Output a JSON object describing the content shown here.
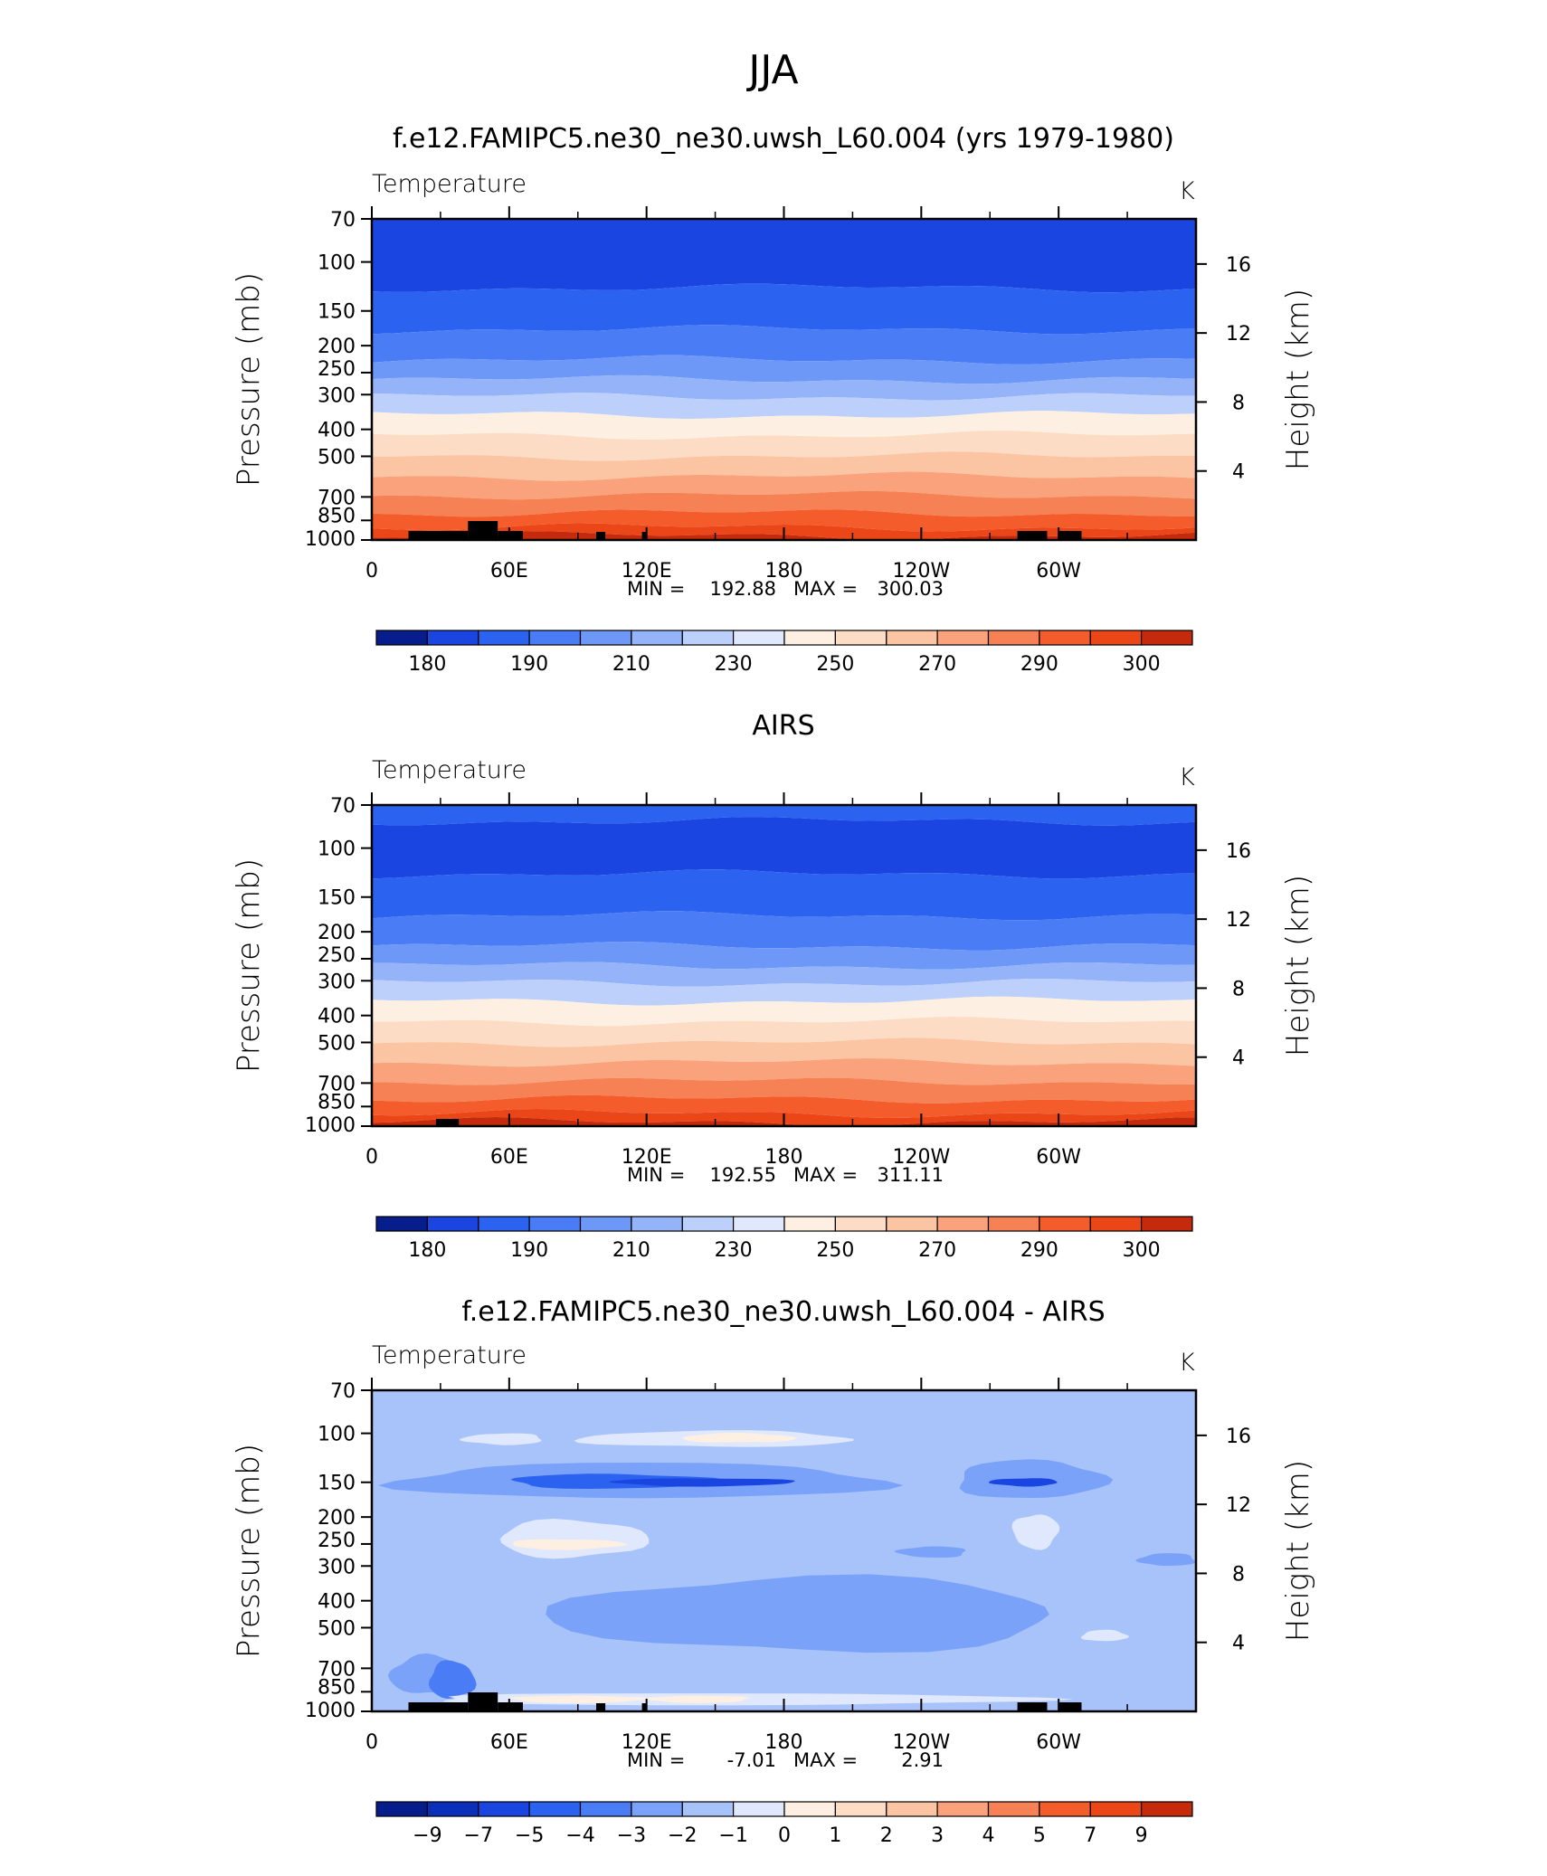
{
  "figure": {
    "title": "JJA"
  },
  "colors": {
    "temperature_levels": [
      "#081d8c",
      "#0b2fb8",
      "#1a45e0",
      "#2c62f0",
      "#4a7cf5",
      "#6e98f7",
      "#94b3f8",
      "#bcd0fb",
      "#dfe8fc",
      "#fdf0e3",
      "#fcdcc4",
      "#fbc4a3",
      "#f9a27b",
      "#f68154",
      "#f45c2c",
      "#ea4617",
      "#c52a0c",
      "#8a1408"
    ],
    "difference_levels": [
      "#081d8c",
      "#0b2fb8",
      "#1a45e0",
      "#2c62f0",
      "#4a7cf5",
      "#7aa2f8",
      "#a8c3fa",
      "#dfe8fc",
      "#fdf0e3",
      "#fcdcc4",
      "#fbc4a3",
      "#f9a27b",
      "#f68154",
      "#f45c2c",
      "#ea4617",
      "#c52a0c",
      "#8a1408"
    ],
    "terrain": "#000000"
  },
  "panels": [
    {
      "title": "f.e12.FAMIPC5.ne30_ne30.uwsh_L60.004 (yrs 1979-1980)",
      "variable_label": "Temperature",
      "units_label": "K",
      "stats": {
        "min_label": "MIN =",
        "min_value": "192.88",
        "max_label": "MAX =",
        "max_value": "300.03"
      },
      "colorbar_labels": [
        "180",
        "190",
        "210",
        "230",
        "250",
        "270",
        "290",
        "300"
      ]
    },
    {
      "title": "AIRS",
      "variable_label": "Temperature",
      "units_label": "K",
      "stats": {
        "min_label": "MIN =",
        "min_value": "192.55",
        "max_label": "MAX =",
        "max_value": "311.11"
      },
      "colorbar_labels": [
        "180",
        "190",
        "210",
        "230",
        "250",
        "270",
        "290",
        "300"
      ]
    },
    {
      "title": "f.e12.FAMIPC5.ne30_ne30.uwsh_L60.004 - AIRS",
      "variable_label": "Temperature",
      "units_label": "K",
      "stats": {
        "min_label": "MIN =",
        "min_value": "-7.01",
        "max_label": "MAX =",
        "max_value": "2.91"
      },
      "colorbar_labels": [
        "-9",
        "-7",
        "-5",
        "-4",
        "-3",
        "-2",
        "-1",
        "0",
        "1",
        "2",
        "3",
        "4",
        "5",
        "7",
        "9"
      ]
    }
  ],
  "chart_data": [
    {
      "type": "heatmap",
      "title": "f.e12.FAMIPC5.ne30_ne30.uwsh_L60.004 (yrs 1979-1980)",
      "xlabel": "",
      "ylabel": "Pressure (mb)",
      "ylabel_right": "Height (km)",
      "x_ticks": [
        "0",
        "60E",
        "120E",
        "180",
        "120W",
        "60W"
      ],
      "x_tick_lon": [
        0,
        60,
        120,
        180,
        240,
        300
      ],
      "xlim": [
        0,
        360
      ],
      "y_ticks": [
        70,
        100,
        150,
        200,
        250,
        300,
        400,
        500,
        700,
        850,
        1000
      ],
      "ylim": [
        1000,
        70
      ],
      "y_scale": "log",
      "right_ticks_km": [
        4,
        8,
        12,
        16
      ],
      "contour_levels": [
        175,
        180,
        185,
        190,
        200,
        210,
        220,
        230,
        240,
        250,
        260,
        270,
        280,
        285,
        290,
        295,
        300
      ],
      "colorbar_labels": [
        180,
        190,
        210,
        230,
        250,
        270,
        290,
        300
      ],
      "min": 192.88,
      "max": 300.03
    },
    {
      "type": "heatmap",
      "title": "AIRS",
      "xlabel": "",
      "ylabel": "Pressure (mb)",
      "ylabel_right": "Height (km)",
      "x_ticks": [
        "0",
        "60E",
        "120E",
        "180",
        "120W",
        "60W"
      ],
      "x_tick_lon": [
        0,
        60,
        120,
        180,
        240,
        300
      ],
      "xlim": [
        0,
        360
      ],
      "y_ticks": [
        70,
        100,
        150,
        200,
        250,
        300,
        400,
        500,
        700,
        850,
        1000
      ],
      "ylim": [
        1000,
        70
      ],
      "y_scale": "log",
      "right_ticks_km": [
        4,
        8,
        12,
        16
      ],
      "contour_levels": [
        175,
        180,
        185,
        190,
        200,
        210,
        220,
        230,
        240,
        250,
        260,
        270,
        280,
        285,
        290,
        295,
        300
      ],
      "colorbar_labels": [
        180,
        190,
        210,
        230,
        250,
        270,
        290,
        300
      ],
      "min": 192.55,
      "max": 311.11
    },
    {
      "type": "heatmap",
      "title": "f.e12.FAMIPC5.ne30_ne30.uwsh_L60.004 - AIRS",
      "xlabel": "",
      "ylabel": "Pressure (mb)",
      "ylabel_right": "Height (km)",
      "x_ticks": [
        "0",
        "60E",
        "120E",
        "180",
        "120W",
        "60W"
      ],
      "x_tick_lon": [
        0,
        60,
        120,
        180,
        240,
        300
      ],
      "xlim": [
        0,
        360
      ],
      "y_ticks": [
        70,
        100,
        150,
        200,
        250,
        300,
        400,
        500,
        700,
        850,
        1000
      ],
      "ylim": [
        1000,
        70
      ],
      "y_scale": "log",
      "right_ticks_km": [
        4,
        8,
        12,
        16
      ],
      "contour_levels": [
        -9,
        -7,
        -5,
        -4,
        -3,
        -2,
        -1,
        0,
        1,
        2,
        3,
        4,
        5,
        7,
        9
      ],
      "colorbar_labels": [
        -9,
        -7,
        -5,
        -4,
        -3,
        -2,
        -1,
        0,
        1,
        2,
        3,
        4,
        5,
        7,
        9
      ],
      "min": -7.01,
      "max": 2.91
    }
  ]
}
